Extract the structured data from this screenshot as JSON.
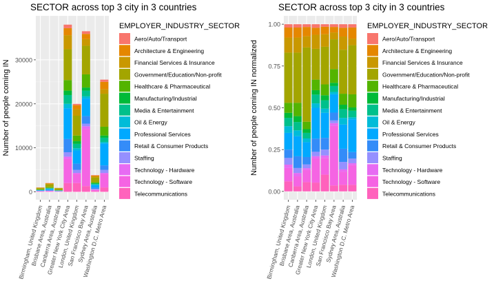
{
  "categories": [
    "Birmingham, United Kingdom",
    "Brisbane Area, Australia",
    "Canberra Area, Australia",
    "Greater New York City Area",
    "London, United Kingdom",
    "San Francisco Bay Area",
    "Sydney Area, Australia",
    "Washington D.C. Metro Area"
  ],
  "sectors": [
    {
      "name": "Aero/Auto/Transport",
      "color": "#F8766D"
    },
    {
      "name": "Architecture & Engineering",
      "color": "#E58700"
    },
    {
      "name": "Financial Services & Insurance",
      "color": "#C99800"
    },
    {
      "name": "Government/Education/Non-profit",
      "color": "#A3A500"
    },
    {
      "name": "Healthcare & Pharmaceutical",
      "color": "#53B400"
    },
    {
      "name": "Manufacturing/Industrial",
      "color": "#00BA38"
    },
    {
      "name": "Media & Entertainment",
      "color": "#00C08B"
    },
    {
      "name": "Oil & Energy",
      "color": "#00BCD8"
    },
    {
      "name": "Professional Services",
      "color": "#00A9FF"
    },
    {
      "name": "Retail & Consumer Products",
      "color": "#348CF8"
    },
    {
      "name": "Staffing",
      "color": "#9590FF"
    },
    {
      "name": "Technology - Hardware",
      "color": "#E76BF3"
    },
    {
      "name": "Technology - Software",
      "color": "#F564E3"
    },
    {
      "name": "Telecommunications",
      "color": "#FF62BC"
    }
  ],
  "legend_title": "EMPLOYER_INDUSTRY_SECTOR",
  "chart_data": [
    {
      "type": "bar",
      "stacked": true,
      "title": "SECTOR across top 3 city in 3 countries",
      "ylabel": "Number of people coming IN",
      "ylim": [
        -1800,
        40000
      ],
      "yticks": [
        0,
        10000,
        20000,
        30000
      ],
      "ytick_labels": [
        "0",
        "10000",
        "20000",
        "30000"
      ],
      "totals": [
        1000,
        2000,
        900,
        38000,
        20000,
        36500,
        3800,
        25500
      ],
      "series": [
        {
          "name": "Aero/Auto/Transport",
          "values": [
            20,
            40,
            15,
            800,
            300,
            600,
            80,
            500
          ]
        },
        {
          "name": "Architecture & Engineering",
          "values": [
            60,
            120,
            50,
            1600,
            900,
            1200,
            200,
            1700
          ]
        },
        {
          "name": "Financial Services & Insurance",
          "values": [
            90,
            180,
            60,
            3200,
            1500,
            1500,
            300,
            1000
          ]
        },
        {
          "name": "Government/Education/Non-profit",
          "values": [
            300,
            600,
            400,
            7000,
            4500,
            6500,
            1000,
            7500
          ]
        },
        {
          "name": "Healthcare & Pharmaceutical",
          "values": [
            60,
            160,
            40,
            2400,
            1300,
            3000,
            250,
            2000
          ]
        },
        {
          "name": "Manufacturing/Industrial",
          "values": [
            30,
            70,
            20,
            1000,
            600,
            700,
            100,
            500
          ]
        },
        {
          "name": "Media & Entertainment",
          "values": [
            50,
            100,
            30,
            2000,
            1000,
            1300,
            200,
            1000
          ]
        },
        {
          "name": "Oil & Energy",
          "values": [
            40,
            70,
            20,
            1000,
            500,
            500,
            150,
            300
          ]
        },
        {
          "name": "Professional Services",
          "values": [
            100,
            240,
            80,
            7000,
            3000,
            4000,
            550,
            5000
          ]
        },
        {
          "name": "Retail & Consumer Products",
          "values": [
            50,
            140,
            40,
            3000,
            1400,
            1700,
            300,
            1000
          ]
        },
        {
          "name": "Staffing",
          "values": [
            40,
            60,
            20,
            1000,
            700,
            600,
            170,
            700
          ]
        },
        {
          "name": "Technology - Hardware",
          "values": [
            20,
            40,
            10,
            500,
            300,
            600,
            50,
            300
          ]
        },
        {
          "name": "Technology - Software",
          "values": [
            80,
            120,
            65,
            5500,
            2000,
            13000,
            300,
            3000
          ]
        },
        {
          "name": "Telecommunications",
          "values": [
            60,
            60,
            50,
            2000,
            2000,
            1300,
            150,
            1000
          ]
        }
      ]
    },
    {
      "type": "bar",
      "stacked": true,
      "normalized": true,
      "title": "SECTOR across top 3 city in 3 countries",
      "ylabel": "Number of people coming IN normalized",
      "ylim": [
        -0.05,
        1.05
      ],
      "yticks": [
        0,
        0.25,
        0.5,
        0.75,
        1
      ],
      "ytick_labels": [
        "0.00",
        "0.25",
        "0.50",
        "0.75",
        "1.00"
      ],
      "values_note": "same counts as the first chart, each bar scaled to sum to 1"
    }
  ]
}
